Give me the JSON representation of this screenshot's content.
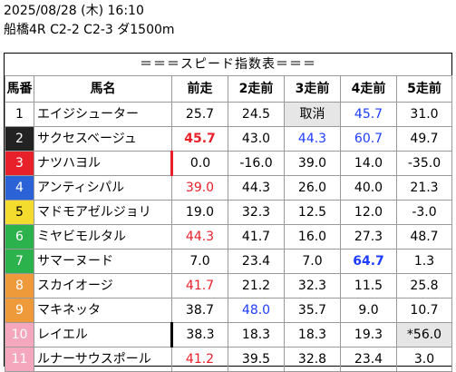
{
  "header": {
    "datetime": "2025/08/28 (木) 16:10",
    "race": "船橋4R C2-2 C2-3 ダ1500m"
  },
  "table": {
    "title": "＝＝＝スピード指数表＝＝＝",
    "columns": [
      "馬番",
      "馬名",
      "前走",
      "2走前",
      "3走前",
      "4走前",
      "5走前"
    ],
    "rows": [
      {
        "num": "1",
        "num_bg": "#ffffff",
        "num_fg": "#000000",
        "name": "エイジシューター",
        "v": [
          "25.7",
          "24.5",
          "取消",
          "45.7",
          "31.0"
        ]
      },
      {
        "num": "2",
        "num_bg": "#222222",
        "num_fg": "#ffffff",
        "name": "サクセスベージュ",
        "v": [
          "45.7",
          "43.0",
          "44.3",
          "60.7",
          "49.7"
        ]
      },
      {
        "num": "3",
        "num_bg": "#e8202a",
        "num_fg": "#ffffff",
        "name": "ナツハヨル",
        "v": [
          "0.0",
          "-16.0",
          "39.0",
          "14.0",
          "-35.0"
        ]
      },
      {
        "num": "4",
        "num_bg": "#2b63d6",
        "num_fg": "#ffffff",
        "name": "アンティシパル",
        "v": [
          "39.0",
          "44.3",
          "26.0",
          "40.0",
          "21.3"
        ]
      },
      {
        "num": "5",
        "num_bg": "#f3dc2e",
        "num_fg": "#000000",
        "name": "マドモアゼルジョリ",
        "v": [
          "19.0",
          "32.3",
          "12.5",
          "12.0",
          "-3.0"
        ]
      },
      {
        "num": "6",
        "num_bg": "#2bb24c",
        "num_fg": "#ffffff",
        "name": "ミヤビモルタル",
        "v": [
          "44.3",
          "41.7",
          "16.0",
          "27.3",
          "48.7"
        ]
      },
      {
        "num": "7",
        "num_bg": "#2bb24c",
        "num_fg": "#ffffff",
        "name": "サマーヌード",
        "v": [
          "7.0",
          "23.4",
          "7.0",
          "64.7",
          "1.3"
        ]
      },
      {
        "num": "8",
        "num_bg": "#ef9a3a",
        "num_fg": "#ffffff",
        "name": "スカイオージ",
        "v": [
          "41.7",
          "21.2",
          "32.3",
          "11.5",
          "25.8"
        ]
      },
      {
        "num": "9",
        "num_bg": "#ef9a3a",
        "num_fg": "#ffffff",
        "name": "マキネッタ",
        "v": [
          "38.7",
          "48.0",
          "35.7",
          "9.0",
          "10.7"
        ]
      },
      {
        "num": "10",
        "num_bg": "#f4a7bd",
        "num_fg": "#ffffff",
        "name": "レイエル",
        "v": [
          "38.3",
          "18.3",
          "18.3",
          "19.3",
          "*56.0"
        ]
      },
      {
        "num": "11",
        "num_bg": "#f4a7bd",
        "num_fg": "#ffffff",
        "name": "ルナーサウスポール",
        "v": [
          "41.2",
          "39.5",
          "32.8",
          "23.4",
          "3.0"
        ]
      }
    ],
    "colors": {
      "red": "#e8202a",
      "blue": "#1e3cff",
      "grey": "#e6e6e6"
    }
  }
}
